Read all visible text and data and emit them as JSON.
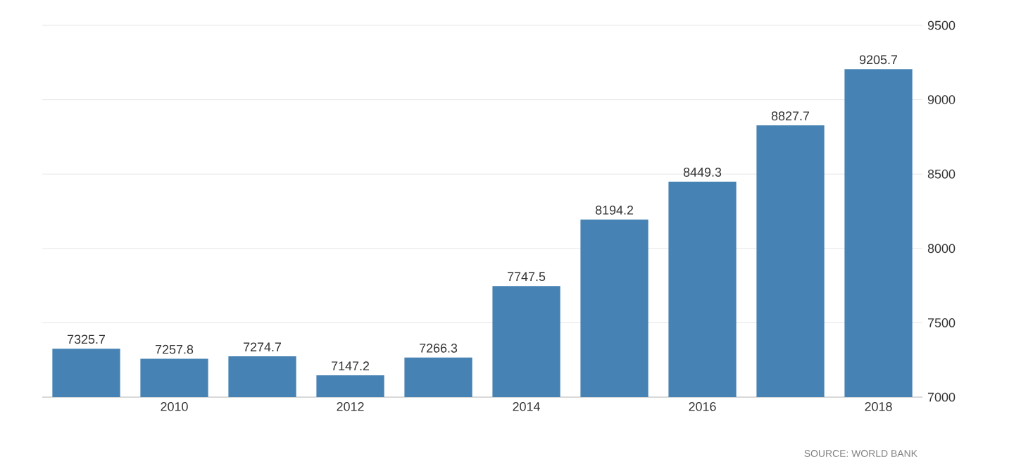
{
  "chart_data": {
    "type": "bar",
    "categories": [
      null,
      "2010",
      null,
      "2012",
      null,
      "2014",
      null,
      "2016",
      null,
      "2018"
    ],
    "values": [
      7325.7,
      7257.8,
      7274.7,
      7147.2,
      7266.3,
      7747.5,
      8194.2,
      8449.3,
      8827.7,
      9205.7
    ],
    "color": "#4682b4",
    "ylim": [
      7000,
      9500
    ],
    "yticks": [
      7000,
      7500,
      8000,
      8500,
      9000,
      9500
    ],
    "grid": "y",
    "data_labels": true,
    "annotations": [
      "SOURCE: WORLD BANK"
    ]
  }
}
